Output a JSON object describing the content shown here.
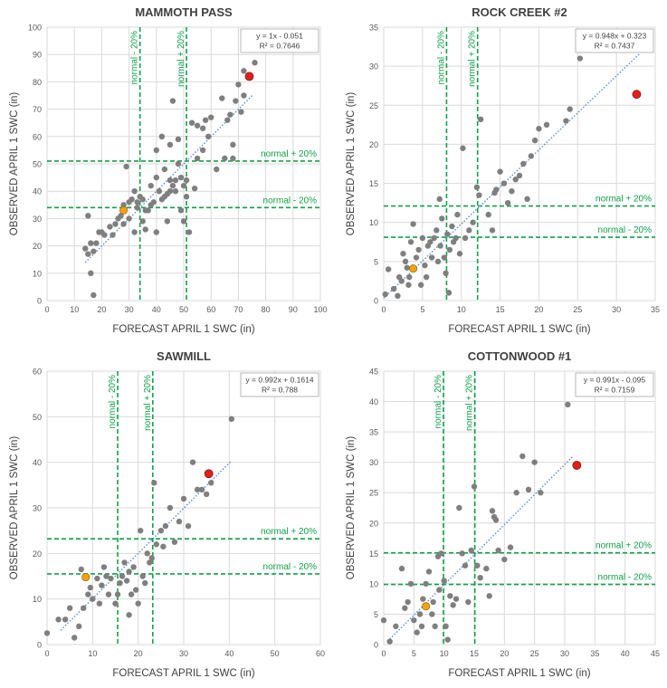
{
  "colors": {
    "point": "#7f7f7f",
    "red_point": "#e0201b",
    "orange_point": "#f2a20f",
    "normal_line": "#12a04a",
    "normal_text": "#12a04a",
    "trend": "#5b8cc8",
    "grid": "#d9d9d9",
    "axis_text": "#595959"
  },
  "chart_data": [
    {
      "type": "scatter",
      "title": "MAMMOTH PASS",
      "xlabel": "FORECAST APRIL 1 SWC (in)",
      "ylabel": "OBSERVED APRIL 1 SWC (in)",
      "xlim": [
        0,
        100
      ],
      "ylim": [
        0,
        100
      ],
      "xticks": [
        0,
        10,
        20,
        30,
        40,
        50,
        60,
        70,
        80,
        90,
        100
      ],
      "yticks": [
        0,
        10,
        20,
        30,
        40,
        50,
        60,
        70,
        80,
        90,
        100
      ],
      "equation": "y = 1x - 0.051",
      "r2": "R² = 0.7646",
      "trendline": {
        "slope": 1.0,
        "intercept": -0.051,
        "x_range": [
          14,
          75
        ]
      },
      "normal_minus": 34,
      "normal_plus": 51,
      "normal_minus_label": "normal - 20%",
      "normal_plus_label": "normal + 20%",
      "highlight_red": [
        74,
        82
      ],
      "highlight_orange": [
        28,
        33
      ],
      "points": [
        [
          14,
          19
        ],
        [
          15,
          17
        ],
        [
          15,
          31
        ],
        [
          16,
          21
        ],
        [
          16,
          10
        ],
        [
          17,
          2
        ],
        [
          17,
          18
        ],
        [
          18,
          21
        ],
        [
          19,
          25
        ],
        [
          20,
          25
        ],
        [
          21,
          24
        ],
        [
          23,
          27
        ],
        [
          24,
          24
        ],
        [
          25,
          28
        ],
        [
          26,
          30
        ],
        [
          27,
          31
        ],
        [
          28,
          28
        ],
        [
          28,
          35
        ],
        [
          29,
          49
        ],
        [
          30,
          30
        ],
        [
          30,
          36
        ],
        [
          31,
          37
        ],
        [
          32,
          25
        ],
        [
          32,
          40
        ],
        [
          33,
          36
        ],
        [
          33,
          34
        ],
        [
          34,
          38
        ],
        [
          35,
          37
        ],
        [
          35,
          29
        ],
        [
          36,
          33
        ],
        [
          36,
          26
        ],
        [
          37,
          33
        ],
        [
          38,
          42
        ],
        [
          38,
          35
        ],
        [
          39,
          36
        ],
        [
          40,
          25
        ],
        [
          40,
          55
        ],
        [
          40,
          45
        ],
        [
          41,
          40
        ],
        [
          42,
          37
        ],
        [
          42,
          60
        ],
        [
          43,
          38
        ],
        [
          43,
          48
        ],
        [
          44,
          29
        ],
        [
          44,
          39
        ],
        [
          45,
          40
        ],
        [
          45,
          44
        ],
        [
          45,
          57
        ],
        [
          46,
          42
        ],
        [
          46,
          73
        ],
        [
          47,
          40
        ],
        [
          47,
          44
        ],
        [
          48,
          50
        ],
        [
          48,
          59
        ],
        [
          49,
          45
        ],
        [
          49,
          33
        ],
        [
          50,
          42
        ],
        [
          50,
          29
        ],
        [
          51,
          38
        ],
        [
          51,
          44
        ],
        [
          52,
          25
        ],
        [
          53,
          65
        ],
        [
          54,
          41
        ],
        [
          55,
          64
        ],
        [
          55,
          52
        ],
        [
          57,
          63
        ],
        [
          57,
          55
        ],
        [
          58,
          66
        ],
        [
          59,
          60
        ],
        [
          60,
          67
        ],
        [
          62,
          48
        ],
        [
          64,
          74
        ],
        [
          65,
          52
        ],
        [
          66,
          66
        ],
        [
          67,
          68
        ],
        [
          68,
          52
        ],
        [
          68,
          57
        ],
        [
          69,
          73
        ],
        [
          70,
          79
        ],
        [
          71,
          69
        ],
        [
          72,
          84
        ],
        [
          72,
          75
        ],
        [
          76,
          87
        ]
      ]
    },
    {
      "type": "scatter",
      "title": "ROCK CREEK #2",
      "xlabel": "FORECAST APRIL 1 SWC (in)",
      "ylabel": "OBSERVED APRIL 1 SWC (in)",
      "xlim": [
        0,
        35
      ],
      "ylim": [
        0,
        35
      ],
      "xticks": [
        0,
        5,
        10,
        15,
        20,
        25,
        30,
        35
      ],
      "yticks": [
        0,
        5,
        10,
        15,
        20,
        25,
        30,
        35
      ],
      "equation": "y = 0.948x + 0.323",
      "r2": "R² = 0.7437",
      "trendline": {
        "slope": 0.948,
        "intercept": 0.323,
        "x_range": [
          0,
          33
        ]
      },
      "normal_minus": 8.1,
      "normal_plus": 12.1,
      "normal_minus_label": "normal - 20%",
      "normal_plus_label": "normal + 20%",
      "highlight_red": [
        32.6,
        26.4
      ],
      "highlight_orange": [
        3.8,
        4.1
      ],
      "points": [
        [
          0.2,
          0.8
        ],
        [
          0.6,
          4.0
        ],
        [
          1.3,
          1.5
        ],
        [
          1.8,
          0.6
        ],
        [
          2.0,
          3.0
        ],
        [
          2.3,
          2.5
        ],
        [
          2.5,
          6.0
        ],
        [
          2.8,
          5.0
        ],
        [
          3.0,
          4.2
        ],
        [
          3.2,
          2.0
        ],
        [
          3.3,
          3.0
        ],
        [
          3.5,
          7.5
        ],
        [
          3.8,
          9.8
        ],
        [
          4.2,
          5.5
        ],
        [
          4.5,
          6.5
        ],
        [
          4.8,
          2.0
        ],
        [
          5.0,
          8.0
        ],
        [
          5.3,
          4.5
        ],
        [
          5.5,
          3.0
        ],
        [
          5.7,
          7.0
        ],
        [
          6.0,
          7.5
        ],
        [
          6.2,
          5.5
        ],
        [
          6.5,
          8.0
        ],
        [
          6.8,
          9.0
        ],
        [
          7.0,
          5.0
        ],
        [
          7.2,
          13.0
        ],
        [
          7.3,
          7.0
        ],
        [
          7.5,
          10.5
        ],
        [
          7.8,
          5.5
        ],
        [
          8.0,
          3.5
        ],
        [
          8.2,
          8.5
        ],
        [
          8.4,
          1.0
        ],
        [
          8.5,
          6.5
        ],
        [
          8.8,
          9.5
        ],
        [
          9.0,
          7.5
        ],
        [
          9.3,
          8.0
        ],
        [
          9.5,
          11.0
        ],
        [
          9.8,
          6.0
        ],
        [
          10.2,
          19.5
        ],
        [
          10.5,
          8.0
        ],
        [
          11.0,
          9.0
        ],
        [
          11.5,
          10.0
        ],
        [
          12.0,
          14.5
        ],
        [
          12.3,
          13.5
        ],
        [
          12.5,
          23.2
        ],
        [
          13.5,
          11.0
        ],
        [
          14.0,
          9.0
        ],
        [
          14.3,
          13.8
        ],
        [
          14.5,
          14.2
        ],
        [
          15.0,
          16.5
        ],
        [
          15.5,
          15.0
        ],
        [
          16.0,
          12.5
        ],
        [
          16.5,
          14.0
        ],
        [
          17.0,
          15.5
        ],
        [
          17.5,
          16.0
        ],
        [
          18.0,
          17.5
        ],
        [
          18.5,
          13.0
        ],
        [
          19.0,
          18.5
        ],
        [
          19.5,
          20.5
        ],
        [
          20.0,
          22.0
        ],
        [
          21.0,
          22.5
        ],
        [
          23.5,
          23.0
        ],
        [
          24.0,
          24.5
        ],
        [
          25.3,
          31.0
        ]
      ]
    },
    {
      "type": "scatter",
      "title": "SAWMILL",
      "xlabel": "FORECAST APRIL 1 SWC (in)",
      "ylabel": "OBSERVED APRIL 1 SWC (in)",
      "xlim": [
        0,
        60
      ],
      "ylim": [
        0,
        60
      ],
      "xticks": [
        0,
        10,
        20,
        30,
        40,
        50,
        60
      ],
      "yticks": [
        0,
        10,
        20,
        30,
        40,
        50,
        60
      ],
      "equation": "y = 0.992x + 0.1614",
      "r2": "R² = 0.788",
      "trendline": {
        "slope": 0.992,
        "intercept": 0.1614,
        "x_range": [
          3,
          40.5
        ]
      },
      "normal_minus": 15.5,
      "normal_plus": 23.2,
      "normal_minus_label": "normal - 20%",
      "normal_plus_label": "normal + 20%",
      "highlight_red": [
        35.5,
        37.5
      ],
      "highlight_orange": [
        8.5,
        14.8
      ],
      "points": [
        [
          0,
          2.5
        ],
        [
          2.5,
          5.5
        ],
        [
          4,
          5.5
        ],
        [
          5,
          8
        ],
        [
          6,
          1.5
        ],
        [
          7,
          4
        ],
        [
          7.5,
          16.5
        ],
        [
          8,
          8
        ],
        [
          9,
          11
        ],
        [
          9.5,
          12.5
        ],
        [
          10,
          10
        ],
        [
          11,
          14.5
        ],
        [
          11.5,
          9
        ],
        [
          12,
          13
        ],
        [
          12.5,
          17
        ],
        [
          13,
          15
        ],
        [
          13.5,
          11
        ],
        [
          14,
          14.5
        ],
        [
          15,
          9
        ],
        [
          15.5,
          11
        ],
        [
          16,
          13.5
        ],
        [
          16.5,
          15
        ],
        [
          17,
          18
        ],
        [
          17.5,
          14
        ],
        [
          18,
          16
        ],
        [
          18,
          6.5
        ],
        [
          18.5,
          11
        ],
        [
          19,
          17
        ],
        [
          19.5,
          12
        ],
        [
          20,
          9
        ],
        [
          20.5,
          25
        ],
        [
          21,
          15
        ],
        [
          21.5,
          13.5
        ],
        [
          22,
          20
        ],
        [
          22.5,
          18
        ],
        [
          23,
          19
        ],
        [
          23.5,
          35.5
        ],
        [
          24,
          22
        ],
        [
          25,
          25
        ],
        [
          25.5,
          21.5
        ],
        [
          26,
          26
        ],
        [
          27,
          30
        ],
        [
          28,
          22.5
        ],
        [
          29,
          27
        ],
        [
          30,
          32
        ],
        [
          31,
          26
        ],
        [
          32,
          40
        ],
        [
          33,
          34
        ],
        [
          34,
          34
        ],
        [
          35,
          33
        ],
        [
          36,
          35.5
        ],
        [
          40.5,
          49.5
        ]
      ]
    },
    {
      "type": "scatter",
      "title": "COTTONWOOD #1",
      "xlabel": "FORECAST APRIL 1 SWC (in)",
      "ylabel": "OBSERVED APRIL 1 SWC (in)",
      "xlim": [
        0,
        45
      ],
      "ylim": [
        0,
        45
      ],
      "xticks": [
        0,
        5,
        10,
        15,
        20,
        25,
        30,
        35,
        40,
        45
      ],
      "yticks": [
        0,
        5,
        10,
        15,
        20,
        25,
        30,
        35,
        40,
        45
      ],
      "equation": "y = 0.991x - 0.095",
      "r2": "R² = 0.7159",
      "trendline": {
        "slope": 0.991,
        "intercept": -0.095,
        "x_range": [
          1,
          31.5
        ]
      },
      "normal_minus": 9.9,
      "normal_plus": 15.1,
      "normal_minus_label": "normal - 20%",
      "normal_plus_label": "normal + 20%",
      "highlight_red": [
        32,
        29.5
      ],
      "highlight_orange": [
        7,
        6.3
      ],
      "points": [
        [
          0,
          4
        ],
        [
          1,
          0.5
        ],
        [
          2,
          3
        ],
        [
          3,
          12.5
        ],
        [
          3.5,
          6
        ],
        [
          4,
          7
        ],
        [
          4.5,
          10
        ],
        [
          5,
          4
        ],
        [
          5.5,
          2
        ],
        [
          6,
          5
        ],
        [
          6.3,
          3
        ],
        [
          6.5,
          7.5
        ],
        [
          7,
          10
        ],
        [
          7.5,
          12
        ],
        [
          8,
          5
        ],
        [
          8.2,
          7
        ],
        [
          8.5,
          3
        ],
        [
          9,
          14.5
        ],
        [
          9.2,
          9
        ],
        [
          9.5,
          15
        ],
        [
          10,
          10.5
        ],
        [
          10.3,
          3
        ],
        [
          10.6,
          0.8
        ],
        [
          11,
          8
        ],
        [
          11.5,
          6.5
        ],
        [
          12,
          7.5
        ],
        [
          12.5,
          22.5
        ],
        [
          13,
          15
        ],
        [
          13.5,
          13
        ],
        [
          14,
          7
        ],
        [
          14.5,
          15.5
        ],
        [
          15,
          26
        ],
        [
          15.5,
          13
        ],
        [
          16,
          11
        ],
        [
          17,
          12.5
        ],
        [
          17.5,
          8
        ],
        [
          18,
          22
        ],
        [
          18.3,
          21
        ],
        [
          18.6,
          20.5
        ],
        [
          19,
          15.5
        ],
        [
          20,
          14
        ],
        [
          21,
          16
        ],
        [
          22,
          25
        ],
        [
          23,
          31
        ],
        [
          24,
          25.5
        ],
        [
          25,
          30
        ],
        [
          26,
          25
        ],
        [
          30.5,
          39.5
        ]
      ]
    }
  ]
}
